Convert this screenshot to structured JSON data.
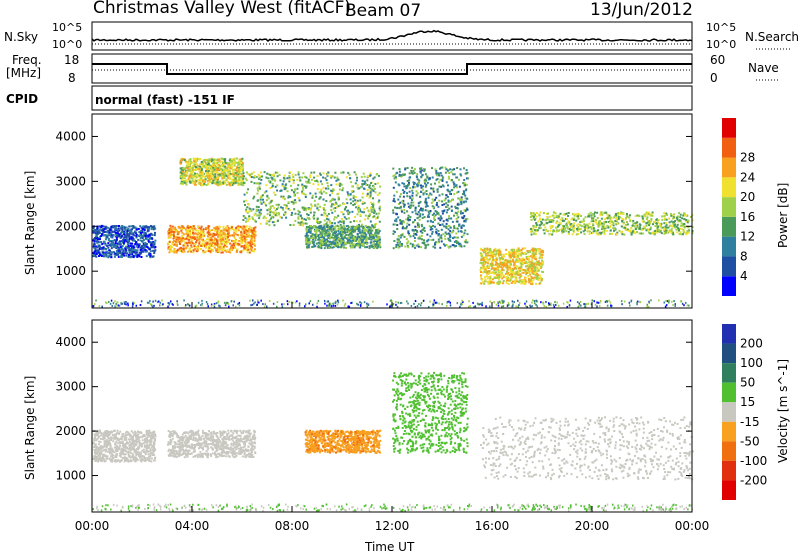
{
  "header": {
    "station": "Christmas Valley West (fitACF)",
    "beam": "Beam 07",
    "date": "13/Jun/2012"
  },
  "top_panels": {
    "nsky_label": "N.Sky",
    "nsearch_label": "N.Search",
    "nsky_ticks": [
      "10^5",
      "10^0"
    ],
    "nsearch_ticks": [
      "10^5",
      "10^0"
    ],
    "freq_label_line1": "Freq.",
    "freq_label_line2": "[MHz]",
    "freq_ticks": [
      "18",
      "8"
    ],
    "nave_label": "Nave",
    "nave_ticks": [
      "60",
      "0"
    ],
    "cpid_label": "CPID",
    "cpid_value": "normal (fast) -151 IF"
  },
  "chart_data": [
    {
      "type": "heatmap",
      "panel": "power",
      "ylabel": "Slant Range [km]",
      "xlabel": "",
      "xlim": [
        "00:00",
        "24:00"
      ],
      "ylim": [
        180,
        4500
      ],
      "yticks": [
        1000,
        2000,
        3000,
        4000
      ],
      "colorbar": {
        "label": "Power [dB]",
        "ticks": [
          4,
          8,
          12,
          16,
          20,
          24,
          28
        ],
        "colors": [
          "#0000ff",
          "#1f4fa3",
          "#2f7f9f",
          "#4a9a5a",
          "#9fd04a",
          "#f0e030",
          "#f8a020",
          "#f06010",
          "#e00000"
        ]
      },
      "regions": [
        {
          "t": [
            0.0,
            2.5
          ],
          "r": [
            1300,
            2000
          ],
          "level": 6
        },
        {
          "t": [
            3.0,
            6.5
          ],
          "r": [
            1400,
            2000
          ],
          "level": 26
        },
        {
          "t": [
            3.5,
            6.0
          ],
          "r": [
            2900,
            3500
          ],
          "level": 20
        },
        {
          "t": [
            6.0,
            11.5
          ],
          "r": [
            2000,
            3200
          ],
          "level": 16
        },
        {
          "t": [
            8.5,
            11.5
          ],
          "r": [
            1500,
            2000
          ],
          "level": 14
        },
        {
          "t": [
            12.0,
            15.0
          ],
          "r": [
            1500,
            3300
          ],
          "level": 12
        },
        {
          "t": [
            15.5,
            18.0
          ],
          "r": [
            700,
            1500
          ],
          "level": 22
        },
        {
          "t": [
            17.5,
            24.0
          ],
          "r": [
            1800,
            2300
          ],
          "level": 18
        }
      ]
    },
    {
      "type": "heatmap",
      "panel": "velocity",
      "ylabel": "Slant Range [km]",
      "xlabel": "Time UT",
      "xlim": [
        "00:00",
        "24:00"
      ],
      "ylim": [
        180,
        4500
      ],
      "xticks": [
        "00:00",
        "04:00",
        "08:00",
        "12:00",
        "16:00",
        "20:00",
        "00:00"
      ],
      "yticks": [
        1000,
        2000,
        3000,
        4000
      ],
      "colorbar": {
        "label": "Velocity [m s^-1]",
        "ticks": [
          200,
          100,
          50,
          15,
          -15,
          -50,
          -100,
          -200
        ],
        "colors": [
          "#2030b0",
          "#205080",
          "#308060",
          "#50c030",
          "#c8c8c0",
          "#f8a020",
          "#f07010",
          "#e03010",
          "#e00000"
        ]
      },
      "regions": [
        {
          "t": [
            0.0,
            2.5
          ],
          "r": [
            1300,
            2000
          ],
          "velocity": 0
        },
        {
          "t": [
            3.0,
            6.5
          ],
          "r": [
            1400,
            2000
          ],
          "velocity": 0
        },
        {
          "t": [
            8.5,
            11.5
          ],
          "r": [
            1500,
            2000
          ],
          "velocity": -40
        },
        {
          "t": [
            12.0,
            15.0
          ],
          "r": [
            1500,
            3300
          ],
          "velocity": 30
        },
        {
          "t": [
            15.5,
            24.0
          ],
          "r": [
            900,
            2300
          ],
          "velocity": 0
        }
      ]
    }
  ]
}
